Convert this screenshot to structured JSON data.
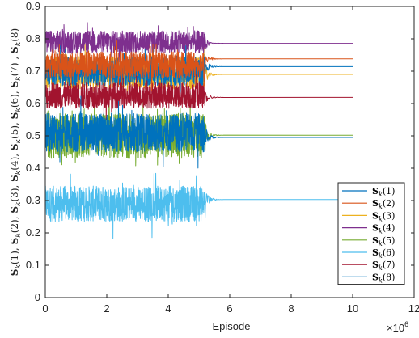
{
  "chart_data": {
    "type": "line",
    "xlabel": "Episode",
    "ylabel": "Sk(1), Sk(2), Sk(3), Sk(4), Sk(5), Sk(6), Sk(7) , Sk(8)",
    "x_multiplier": "×10",
    "x_multiplier_exp": "6",
    "xlim": [
      0,
      12
    ],
    "ylim": [
      0,
      0.9
    ],
    "x_ticks": [
      "0",
      "2",
      "4",
      "6",
      "8",
      "10",
      "12"
    ],
    "y_ticks": [
      "0",
      "0.1",
      "0.2",
      "0.3",
      "0.4",
      "0.5",
      "0.6",
      "0.7",
      "0.8",
      "0.9"
    ],
    "grid": false,
    "legend_position": "bottom-right",
    "noise_until": 5.2,
    "x_end": 10,
    "series": [
      {
        "name": "Sk(1)",
        "color": "#0072BD",
        "converged": 0.714,
        "noise_mean": 0.7,
        "noise_amp": 0.045
      },
      {
        "name": "Sk(2)",
        "color": "#D95319",
        "converged": 0.738,
        "noise_mean": 0.72,
        "noise_amp": 0.04
      },
      {
        "name": "Sk(3)",
        "color": "#EDB120",
        "converged": 0.69,
        "noise_mean": 0.695,
        "noise_amp": 0.05
      },
      {
        "name": "Sk(4)",
        "color": "#7E2F8E",
        "converged": 0.786,
        "noise_mean": 0.79,
        "noise_amp": 0.035
      },
      {
        "name": "Sk(5)",
        "color": "#77AC30",
        "converged": 0.502,
        "noise_mean": 0.5,
        "noise_amp": 0.07
      },
      {
        "name": "Sk(6)",
        "color": "#4DBEEE",
        "converged": 0.303,
        "noise_mean": 0.29,
        "noise_amp": 0.055
      },
      {
        "name": "Sk(7)",
        "color": "#A2142F",
        "converged": 0.619,
        "noise_mean": 0.625,
        "noise_amp": 0.04
      },
      {
        "name": "Sk(8)",
        "color": "#0072BD",
        "converged": 0.495,
        "noise_mean": 0.51,
        "noise_amp": 0.06
      }
    ]
  }
}
